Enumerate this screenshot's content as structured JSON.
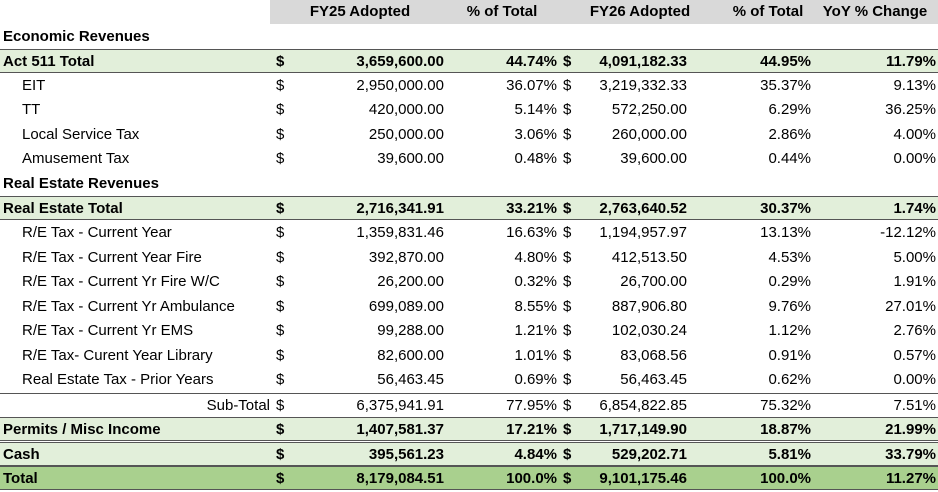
{
  "table": {
    "header": [
      "FY25 Adopted",
      "% of Total",
      "FY26 Adopted",
      "% of Total",
      "YoY % Change"
    ],
    "rows": [
      {
        "style": "section",
        "label": "Economic Revenues",
        "cells": []
      },
      {
        "style": "total",
        "label": "Act 511 Total",
        "cells": [
          "$",
          "3,659,600.00",
          "44.74%",
          "$",
          "4,091,182.33",
          "44.95%",
          "11.79%"
        ]
      },
      {
        "style": "detail",
        "label": "EIT",
        "cells": [
          "$",
          "2,950,000.00",
          "36.07%",
          "$",
          "3,219,332.33",
          "35.37%",
          "9.13%"
        ]
      },
      {
        "style": "detail",
        "label": "TT",
        "cells": [
          "$",
          "420,000.00",
          "5.14%",
          "$",
          "572,250.00",
          "6.29%",
          "36.25%"
        ]
      },
      {
        "style": "detail",
        "label": "Local Service Tax",
        "cells": [
          "$",
          "250,000.00",
          "3.06%",
          "$",
          "260,000.00",
          "2.86%",
          "4.00%"
        ]
      },
      {
        "style": "detail",
        "label": "Amusement Tax",
        "cells": [
          "$",
          "39,600.00",
          "0.48%",
          "$",
          "39,600.00",
          "0.44%",
          "0.00%"
        ]
      },
      {
        "style": "section",
        "label": "Real Estate Revenues",
        "cells": []
      },
      {
        "style": "total",
        "label": "Real Estate Total",
        "cells": [
          "$",
          "2,716,341.91",
          "33.21%",
          "$",
          "2,763,640.52",
          "30.37%",
          "1.74%"
        ]
      },
      {
        "style": "detail",
        "label": "R/E Tax - Current Year",
        "cells": [
          "$",
          "1,359,831.46",
          "16.63%",
          "$",
          "1,194,957.97",
          "13.13%",
          "-12.12%"
        ]
      },
      {
        "style": "detail",
        "label": "R/E Tax - Current Year Fire",
        "cells": [
          "$",
          "392,870.00",
          "4.80%",
          "$",
          "412,513.50",
          "4.53%",
          "5.00%"
        ]
      },
      {
        "style": "detail",
        "label": "R/E Tax - Current Yr Fire W/C",
        "cells": [
          "$",
          "26,200.00",
          "0.32%",
          "$",
          "26,700.00",
          "0.29%",
          "1.91%"
        ]
      },
      {
        "style": "detail",
        "label": "R/E Tax - Current Yr Ambulance",
        "cells": [
          "$",
          "699,089.00",
          "8.55%",
          "$",
          "887,906.80",
          "9.76%",
          "27.01%"
        ]
      },
      {
        "style": "detail",
        "label": "R/E Tax - Current Yr EMS",
        "cells": [
          "$",
          "99,288.00",
          "1.21%",
          "$",
          "102,030.24",
          "1.12%",
          "2.76%"
        ]
      },
      {
        "style": "detail",
        "label": "R/E Tax- Curent Year Library",
        "cells": [
          "$",
          "82,600.00",
          "1.01%",
          "$",
          "83,068.56",
          "0.91%",
          "0.57%"
        ]
      },
      {
        "style": "detail",
        "label": "Real Estate Tax - Prior Years",
        "cells": [
          "$",
          "56,463.45",
          "0.69%",
          "$",
          "56,463.45",
          "0.62%",
          "0.00%"
        ]
      },
      {
        "style": "subtotal",
        "label": "Sub-Total",
        "cells": [
          "$",
          "6,375,941.91",
          "77.95%",
          "$",
          "6,854,822.85",
          "75.32%",
          "7.51%"
        ]
      },
      {
        "style": "total",
        "label": "Permits / Misc Income",
        "cells": [
          "$",
          "1,407,581.37",
          "17.21%",
          "$",
          "1,717,149.90",
          "18.87%",
          "21.99%"
        ]
      },
      {
        "style": "total",
        "label": "Cash",
        "cells": [
          "$",
          "395,561.23",
          "4.84%",
          "$",
          "529,202.71",
          "5.81%",
          "33.79%"
        ]
      },
      {
        "style": "grand",
        "label": "Total",
        "cells": [
          "$",
          "8,179,084.51",
          "100.0%",
          "$",
          "9,101,175.46",
          "100.0%",
          "11.27%"
        ]
      }
    ]
  }
}
